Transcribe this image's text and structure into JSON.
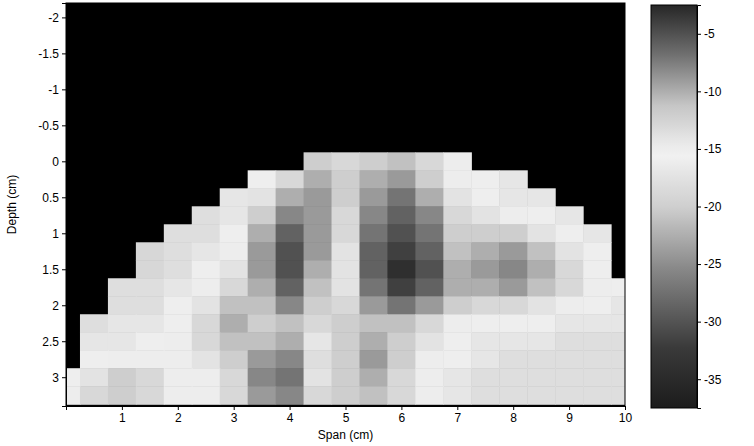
{
  "chart_data": {
    "type": "heatmap",
    "x_label": "Span (cm)",
    "y_label": "Depth (cm)",
    "xlim": [
      0,
      10
    ],
    "ylim": [
      -2.2,
      3.4
    ],
    "xticks": [
      1,
      2,
      3,
      4,
      5,
      6,
      7,
      8,
      9,
      10
    ],
    "yticks": [
      -2,
      -1.5,
      -1,
      -0.5,
      0,
      0.5,
      1,
      1.5,
      2,
      2.5,
      3
    ],
    "x": [
      0,
      0.5,
      1,
      1.5,
      2,
      2.5,
      3,
      3.5,
      4,
      4.5,
      5,
      5.5,
      6,
      6.5,
      7,
      7.5,
      8,
      8.5,
      9,
      9.5,
      10
    ],
    "y": [
      0,
      0.25,
      0.5,
      0.75,
      1,
      1.25,
      1.5,
      1.75,
      2,
      2.25,
      2.5,
      2.75,
      3,
      3.25
    ],
    "z": [
      [
        null,
        null,
        null,
        null,
        null,
        null,
        null,
        null,
        null,
        -12,
        -13,
        -12,
        -11,
        -13,
        -15,
        null,
        null,
        null,
        null,
        null,
        null
      ],
      [
        null,
        null,
        null,
        null,
        null,
        null,
        null,
        -16,
        -13,
        -10,
        -12,
        -10,
        -9,
        -12,
        -15,
        -16,
        -17,
        null,
        null,
        null,
        null
      ],
      [
        null,
        null,
        null,
        null,
        null,
        null,
        -17,
        -14,
        -10,
        -9,
        -12,
        -9,
        -7,
        -10,
        -14,
        -16,
        -17,
        -17,
        null,
        null,
        null
      ],
      [
        null,
        null,
        null,
        null,
        null,
        -18,
        -17,
        -12,
        -8,
        -9,
        -13,
        -8,
        -6,
        -8,
        -13,
        -14,
        -15,
        -16,
        -17,
        null,
        null
      ],
      [
        null,
        null,
        null,
        null,
        -18,
        -18,
        -16,
        -10,
        -6,
        -9,
        -13,
        -7,
        -5,
        -7,
        -12,
        -12,
        -12,
        -14,
        -16,
        -17,
        null
      ],
      [
        null,
        null,
        null,
        -19,
        -18,
        -17,
        -15,
        -9,
        -5,
        -9,
        -14,
        -6,
        -4,
        -6,
        -11,
        -10,
        -9,
        -11,
        -14,
        -16,
        null
      ],
      [
        null,
        null,
        null,
        -19,
        -18,
        -16,
        -14,
        -9,
        -5,
        -10,
        -14,
        -6,
        -3,
        -5,
        -10,
        -9,
        -8,
        -10,
        -13,
        -16,
        null
      ],
      [
        null,
        null,
        -18,
        -18,
        -17,
        -15,
        -13,
        -10,
        -6,
        -11,
        -14,
        -7,
        -4,
        -6,
        -10,
        -10,
        -9,
        -11,
        -13,
        -15,
        -16
      ],
      [
        null,
        null,
        -18,
        -18,
        -16,
        -14,
        -11,
        -11,
        -8,
        -12,
        -13,
        -9,
        -7,
        -9,
        -12,
        -13,
        -13,
        -14,
        -15,
        -16,
        -17
      ],
      [
        null,
        -18,
        -17,
        -17,
        -16,
        -13,
        -10,
        -12,
        -11,
        -13,
        -12,
        -11,
        -11,
        -13,
        -15,
        -16,
        -16,
        -16,
        -17,
        -17,
        -17
      ],
      [
        null,
        -17,
        -17,
        -16,
        -15,
        -13,
        -11,
        -11,
        -10,
        -17,
        -12,
        -10,
        -12,
        -14,
        -16,
        -17,
        -17,
        -17,
        -18,
        -18,
        -18
      ],
      [
        null,
        -16,
        -15,
        -15,
        -15,
        -14,
        -12,
        -9,
        -8,
        -18,
        -12,
        -9,
        -12,
        -15,
        -16,
        -17,
        -18,
        -18,
        -18,
        -18,
        -18
      ],
      [
        -16,
        -14,
        -12,
        -13,
        -15,
        -15,
        -13,
        -8,
        -7,
        -14,
        -12,
        -10,
        -13,
        -15,
        -17,
        -18,
        -18,
        -18,
        -18,
        -18,
        -18
      ],
      [
        -15,
        -13,
        -12,
        -13,
        -15,
        -15,
        -13,
        -9,
        -8,
        -13,
        -12,
        -11,
        -13,
        -15,
        -17,
        -18,
        -18,
        -18,
        -18,
        -18,
        -18
      ]
    ],
    "colorbar": {
      "range": [
        -37.5,
        -2.5
      ],
      "ticks": [
        -5,
        -10,
        -15,
        -20,
        -25,
        -30,
        -35
      ]
    }
  }
}
